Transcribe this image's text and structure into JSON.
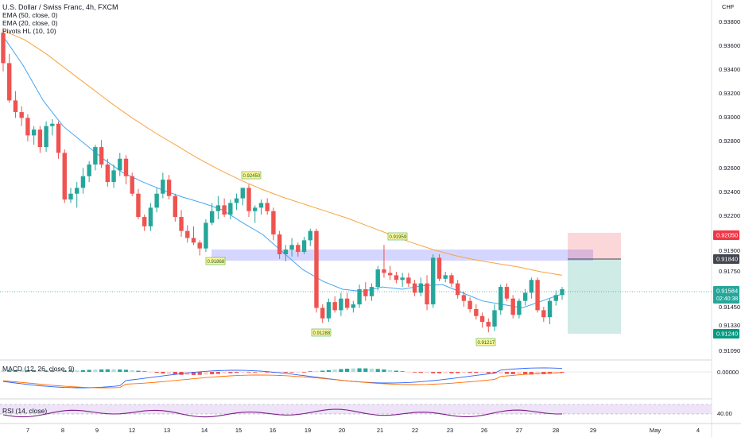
{
  "header": {
    "symbol_title": "U.S. Dollar / Swiss Franc, 4h, FXCM",
    "indicators": [
      "EMA (50, close, 0)",
      "EMA (20, close, 0)",
      "Pivots HL (10, 10)"
    ]
  },
  "currency_label": "CHF",
  "price_axis_ticks": [
    "0.93800",
    "0.93600",
    "0.93400",
    "0.93200",
    "0.93000",
    "0.92800",
    "0.92600",
    "0.92400",
    "0.92200",
    "0.91900",
    "0.91750",
    "0.91450",
    "0.91330",
    "0.91090"
  ],
  "price_badges": [
    {
      "value": "0.92050",
      "color": "#f23645"
    },
    {
      "value": "0.91840",
      "color": "#434651"
    },
    {
      "value": "0.91584",
      "timer": "02:40:38",
      "color": "#26a69a"
    },
    {
      "value": "0.91240",
      "color": "#089981"
    }
  ],
  "x_axis_labels": [
    "7",
    "8",
    "9",
    "12",
    "13",
    "14",
    "15",
    "16",
    "19",
    "20",
    "21",
    "22",
    "23",
    "26",
    "27",
    "28",
    "29",
    "May",
    "4"
  ],
  "pivot_labels": [
    "0.92450",
    "0.91868",
    "0.91959",
    "0.91288",
    "0.91217"
  ],
  "macd": {
    "label": "MACD (12, 26, close, 9)",
    "zero_label": "0.00000"
  },
  "rsi": {
    "label": "RSI (14, close)",
    "value_label": "40.00"
  },
  "colors": {
    "up": "#26a69a",
    "down": "#ef5350",
    "ema50": "#f7a440",
    "ema20": "#42a5f5",
    "zone": "#b2b5ff",
    "rsi_line": "#7e1f86",
    "rsi_band": "#eadcf7",
    "macd_line": "#2962ff",
    "signal_line": "#ff6d00"
  },
  "chart_data": {
    "type": "candlestick",
    "title": "U.S. Dollar / Swiss Franc, 4h, FXCM",
    "ylim": [
      0.9098,
      0.9398
    ],
    "candles": [
      [
        0.9378,
        0.9382,
        0.9345,
        0.9352
      ],
      [
        0.9352,
        0.936,
        0.9318,
        0.932
      ],
      [
        0.932,
        0.9328,
        0.9305,
        0.931
      ],
      [
        0.931,
        0.9315,
        0.9298,
        0.9305
      ],
      [
        0.9305,
        0.9308,
        0.9285,
        0.929
      ],
      [
        0.929,
        0.9298,
        0.9282,
        0.9295
      ],
      [
        0.9295,
        0.9298,
        0.9275,
        0.928
      ],
      [
        0.928,
        0.9302,
        0.9276,
        0.9298
      ],
      [
        0.9298,
        0.9304,
        0.929,
        0.93
      ],
      [
        0.93,
        0.9302,
        0.927,
        0.9275
      ],
      [
        0.9275,
        0.9278,
        0.9232,
        0.9235
      ],
      [
        0.9235,
        0.9245,
        0.9232,
        0.924
      ],
      [
        0.924,
        0.925,
        0.9228,
        0.9245
      ],
      [
        0.9245,
        0.9262,
        0.924,
        0.9255
      ],
      [
        0.9255,
        0.9268,
        0.925,
        0.9265
      ],
      [
        0.9265,
        0.9282,
        0.926,
        0.928
      ],
      [
        0.928,
        0.9286,
        0.9262,
        0.9265
      ],
      [
        0.9265,
        0.927,
        0.9246,
        0.925
      ],
      [
        0.925,
        0.9265,
        0.9245,
        0.926
      ],
      [
        0.926,
        0.9275,
        0.9255,
        0.927
      ],
      [
        0.927,
        0.9273,
        0.9248,
        0.9255
      ],
      [
        0.9255,
        0.9258,
        0.9238,
        0.924
      ],
      [
        0.924,
        0.9244,
        0.9218,
        0.922
      ],
      [
        0.922,
        0.9222,
        0.9208,
        0.9212
      ],
      [
        0.9212,
        0.9232,
        0.9208,
        0.9228
      ],
      [
        0.9228,
        0.9245,
        0.9224,
        0.924
      ],
      [
        0.924,
        0.9258,
        0.9236,
        0.9252
      ],
      [
        0.9252,
        0.9256,
        0.9235,
        0.9238
      ],
      [
        0.9238,
        0.924,
        0.9216,
        0.922
      ],
      [
        0.922,
        0.9226,
        0.9203,
        0.9208
      ],
      [
        0.9208,
        0.9213,
        0.9198,
        0.9202
      ],
      [
        0.9202,
        0.9212,
        0.9196,
        0.9198
      ],
      [
        0.9198,
        0.92,
        0.9187,
        0.9193
      ],
      [
        0.9193,
        0.9218,
        0.919,
        0.9215
      ],
      [
        0.9215,
        0.9232,
        0.9213,
        0.9225
      ],
      [
        0.9225,
        0.9238,
        0.9218,
        0.923
      ],
      [
        0.923,
        0.9236,
        0.922,
        0.9222
      ],
      [
        0.9222,
        0.9235,
        0.9218,
        0.9232
      ],
      [
        0.9232,
        0.924,
        0.9226,
        0.9236
      ],
      [
        0.9236,
        0.9245,
        0.923,
        0.9245
      ],
      [
        0.9245,
        0.9248,
        0.922,
        0.9225
      ],
      [
        0.9225,
        0.923,
        0.9215,
        0.9228
      ],
      [
        0.9228,
        0.9235,
        0.9222,
        0.9232
      ],
      [
        0.9232,
        0.9236,
        0.9222,
        0.9225
      ],
      [
        0.9225,
        0.9228,
        0.92,
        0.9205
      ],
      [
        0.9205,
        0.9208,
        0.9184,
        0.9188
      ],
      [
        0.9188,
        0.9196,
        0.9182,
        0.9192
      ],
      [
        0.9192,
        0.9202,
        0.9186,
        0.9196
      ],
      [
        0.9196,
        0.9198,
        0.9186,
        0.919
      ],
      [
        0.919,
        0.9203,
        0.9188,
        0.92
      ],
      [
        0.92,
        0.921,
        0.9195,
        0.9208
      ],
      [
        0.9208,
        0.921,
        0.9138,
        0.9142
      ],
      [
        0.9142,
        0.9145,
        0.9129,
        0.9133
      ],
      [
        0.9133,
        0.915,
        0.913,
        0.9147
      ],
      [
        0.9147,
        0.9152,
        0.9138,
        0.914
      ],
      [
        0.914,
        0.9155,
        0.9135,
        0.915
      ],
      [
        0.915,
        0.9155,
        0.914,
        0.9142
      ],
      [
        0.9142,
        0.9148,
        0.9138,
        0.9145
      ],
      [
        0.9145,
        0.9162,
        0.9142,
        0.9158
      ],
      [
        0.9158,
        0.9164,
        0.9148,
        0.9152
      ],
      [
        0.9152,
        0.9163,
        0.9148,
        0.916
      ],
      [
        0.916,
        0.9178,
        0.9157,
        0.9175
      ],
      [
        0.9175,
        0.9196,
        0.9168,
        0.9172
      ],
      [
        0.9172,
        0.9178,
        0.9166,
        0.917
      ],
      [
        0.917,
        0.9173,
        0.9163,
        0.9166
      ],
      [
        0.9166,
        0.9172,
        0.916,
        0.9168
      ],
      [
        0.9168,
        0.9172,
        0.916,
        0.9163
      ],
      [
        0.9163,
        0.9166,
        0.9152,
        0.9155
      ],
      [
        0.9155,
        0.9168,
        0.9152,
        0.9163
      ],
      [
        0.9163,
        0.917,
        0.914,
        0.9145
      ],
      [
        0.9145,
        0.9188,
        0.9142,
        0.9185
      ],
      [
        0.9185,
        0.9188,
        0.9165,
        0.9167
      ],
      [
        0.9167,
        0.9173,
        0.9164,
        0.917
      ],
      [
        0.917,
        0.9172,
        0.916,
        0.9163
      ],
      [
        0.9163,
        0.9166,
        0.915,
        0.9153
      ],
      [
        0.9153,
        0.9156,
        0.9143,
        0.9148
      ],
      [
        0.9148,
        0.9151,
        0.9138,
        0.9141
      ],
      [
        0.9141,
        0.9145,
        0.9132,
        0.9135
      ],
      [
        0.9135,
        0.9138,
        0.9125,
        0.913
      ],
      [
        0.913,
        0.9133,
        0.9121,
        0.9126
      ],
      [
        0.9126,
        0.9145,
        0.9122,
        0.914
      ],
      [
        0.914,
        0.9162,
        0.9136,
        0.916
      ],
      [
        0.916,
        0.9163,
        0.9148,
        0.915
      ],
      [
        0.915,
        0.9153,
        0.9133,
        0.9136
      ],
      [
        0.9136,
        0.915,
        0.9133,
        0.9148
      ],
      [
        0.9148,
        0.9158,
        0.9144,
        0.9155
      ],
      [
        0.9155,
        0.9168,
        0.915,
        0.9166
      ],
      [
        0.9166,
        0.9168,
        0.9138,
        0.914
      ],
      [
        0.914,
        0.9143,
        0.913,
        0.9134
      ],
      [
        0.9134,
        0.915,
        0.9128,
        0.9148
      ],
      [
        0.9148,
        0.9157,
        0.9144,
        0.9153
      ],
      [
        0.9153,
        0.916,
        0.9149,
        0.9158
      ]
    ],
    "ema50": [
      [
        0.938,
        0.9372,
        0.936,
        0.9346,
        0.9332,
        0.9318,
        0.9305,
        0.9293,
        0.9282,
        0.9271,
        0.9261,
        0.9252,
        0.9244,
        0.9237,
        0.9231,
        0.9225,
        0.9219,
        0.9212,
        0.9205,
        0.9198,
        0.9192,
        0.9187,
        0.9183,
        0.918,
        0.9177,
        0.9173,
        0.917
      ],
      [
        0.938,
        0.9372,
        0.936,
        0.9346,
        0.9332,
        0.9318,
        0.9305,
        0.9293,
        0.9282,
        0.9271,
        0.9261,
        0.9252,
        0.9244,
        0.9237,
        0.9231,
        0.9225,
        0.9219,
        0.9212,
        0.9205,
        0.9198,
        0.9192,
        0.9187,
        0.9183,
        0.918,
        0.9177,
        0.9173,
        0.917
      ]
    ],
    "ema20": [
      0.9375,
      0.935,
      0.932,
      0.9298,
      0.9284,
      0.927,
      0.9258,
      0.925,
      0.9243,
      0.9237,
      0.9232,
      0.9226,
      0.9215,
      0.9205,
      0.919,
      0.9175,
      0.9165,
      0.9158,
      0.9156,
      0.916,
      0.9158,
      0.9161,
      0.9162,
      0.9155,
      0.9148,
      0.9145,
      0.9142,
      0.9148,
      0.9154
    ],
    "supply_zone": [
      0.9184,
      0.919
    ],
    "position": {
      "stop": 0.9205,
      "entry": 0.9184,
      "target": 0.9124
    }
  }
}
